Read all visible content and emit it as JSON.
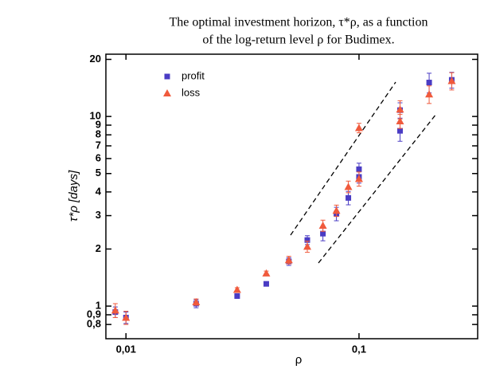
{
  "chart_data": {
    "type": "scatter",
    "title": [
      "The optimal investment horizon, τ*ρ, as a function",
      "of the log-return level ρ for Budimex."
    ],
    "x_label": "ρ",
    "y_label": "τ*ρ [days]",
    "x_log": true,
    "y_log": true,
    "xlim": [
      0.0082,
      0.323
    ],
    "ylim": [
      0.673,
      21.3
    ],
    "xticks": [
      {
        "value": 0.01,
        "label": "0,01"
      },
      {
        "value": 0.1,
        "label": "0,1"
      }
    ],
    "yticks": [
      {
        "value": 0.8,
        "label": "0,8"
      },
      {
        "value": 0.9,
        "label": "0,9"
      },
      1,
      2,
      3,
      4,
      5,
      6,
      7,
      8,
      9,
      10,
      20
    ],
    "legend": "top-left",
    "series": [
      {
        "name": "profit",
        "color": "#4a3cc4",
        "marker": "square",
        "x": [
          0.009,
          0.01,
          0.02,
          0.03,
          0.04,
          0.05,
          0.06,
          0.07,
          0.08,
          0.09,
          0.1,
          0.1,
          0.15,
          0.15,
          0.2,
          0.25
        ],
        "values": [
          0.93,
          0.87,
          1.03,
          1.13,
          1.31,
          1.72,
          2.23,
          2.41,
          3.07,
          3.72,
          5.27,
          4.8,
          8.4,
          10.8,
          15.1,
          15.6
        ],
        "errors": [
          0.06,
          0.06,
          0.05,
          0.03,
          0.03,
          0.08,
          0.12,
          0.2,
          0.25,
          0.3,
          0.4,
          0.35,
          1.0,
          1.0,
          1.8,
          1.5
        ]
      },
      {
        "name": "loss",
        "color": "#f05a3c",
        "marker": "triangle",
        "x": [
          0.009,
          0.01,
          0.02,
          0.03,
          0.04,
          0.05,
          0.06,
          0.07,
          0.08,
          0.09,
          0.1,
          0.1,
          0.15,
          0.15,
          0.2,
          0.25
        ],
        "values": [
          0.95,
          0.87,
          1.05,
          1.22,
          1.49,
          1.75,
          2.06,
          2.66,
          3.19,
          4.26,
          4.69,
          8.7,
          10.9,
          9.45,
          13.1,
          15.4
        ],
        "errors": [
          0.08,
          0.07,
          0.04,
          0.03,
          0.04,
          0.08,
          0.14,
          0.18,
          0.22,
          0.3,
          0.4,
          0.5,
          1.2,
          0.8,
          1.4,
          1.6
        ]
      }
    ]
  }
}
